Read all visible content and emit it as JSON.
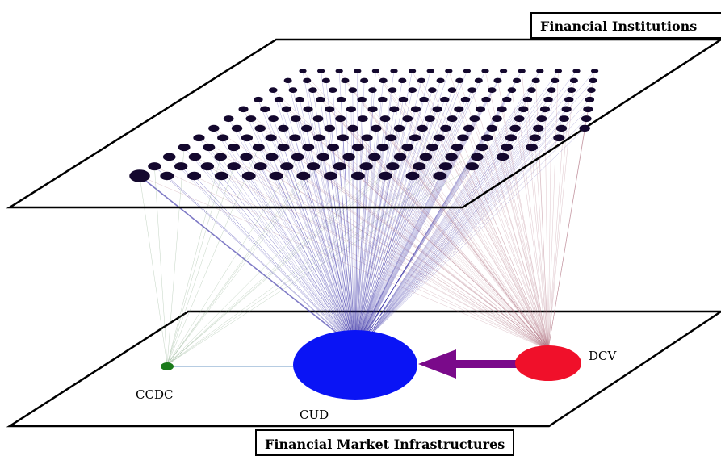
{
  "layers": {
    "top": {
      "title": "Financial Institutions"
    },
    "bottom": {
      "title": "Financial Market Infrastructures"
    }
  },
  "nodes": {
    "ccdc": {
      "label": "CCDC",
      "color": "#1a7a1a"
    },
    "cud": {
      "label": "CUD",
      "color": "#0a14f5"
    },
    "dcv": {
      "label": "DCV",
      "color": "#f0102a"
    }
  },
  "colors": {
    "institution_node": "#14082e",
    "edge_ccdc": "#7aa07a",
    "edge_cud": "#2a22a0",
    "edge_dcv": "#b07080",
    "arrow": "#7a0a8a",
    "ccdc_cud_link": "#8aaed0"
  }
}
